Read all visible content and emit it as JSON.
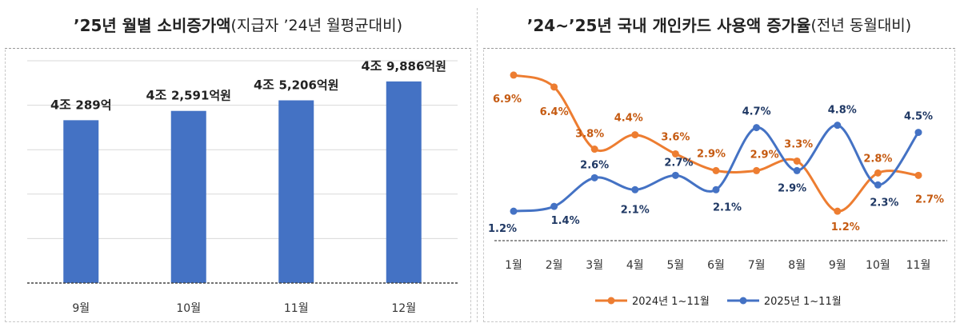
{
  "left_title": {
    "bold": "’25년 월별 소비증가액",
    "normal": "(지급자 ’24년 월평균대비)"
  },
  "right_title": {
    "bold": "’24~’25년 국내 개인카드 사용액 증가율",
    "normal": "(전년 동월대비)"
  },
  "colors": {
    "bar": "#4472c4",
    "orange": "#ed7d31",
    "blue": "#4472c4",
    "label_orange": "#c55a11",
    "label_blue": "#1f3864"
  },
  "chart_data": [
    {
      "type": "bar",
      "title": "’25년 월별 소비증가액(지급자 ’24년 월평균대비)",
      "categories": [
        "9월",
        "10월",
        "11월",
        "12월"
      ],
      "values": [
        40289,
        42591,
        45206,
        49886
      ],
      "value_labels": [
        {
          "big": "4조 ",
          "small": "289억"
        },
        {
          "big": "4조 ",
          "small": "2,591억원"
        },
        {
          "big": "4조 ",
          "small": "5,206억원"
        },
        {
          "big": "4조 ",
          "small": "9,886억원"
        }
      ],
      "unit": "억원",
      "ylim": [
        0,
        55000
      ]
    },
    {
      "type": "line",
      "title": "’24~’25년 국내 개인카드 사용액 증가율(전년 동월대비)",
      "categories": [
        "1월",
        "2월",
        "3월",
        "4월",
        "5월",
        "6월",
        "7월",
        "8월",
        "9월",
        "10월",
        "11월"
      ],
      "series": [
        {
          "name": "2024년 1~11월",
          "values": [
            6.9,
            6.4,
            3.8,
            4.4,
            3.6,
            2.9,
            2.9,
            3.3,
            1.2,
            2.8,
            2.7
          ],
          "labels": [
            "6.9%",
            "6.4%",
            "3.8%",
            "4.4%",
            "3.6%",
            "2.9%",
            "2.9%",
            "3.3%",
            "1.2%",
            "2.8%",
            "2.7%"
          ]
        },
        {
          "name": "2025년 1~11월",
          "values": [
            1.2,
            1.4,
            2.6,
            2.1,
            2.7,
            2.1,
            4.7,
            2.9,
            4.8,
            2.3,
            4.5
          ],
          "labels": [
            "1.2%",
            "1.4%",
            "2.6%",
            "2.1%",
            "2.7%",
            "2.1%",
            "4.7%",
            "2.9%",
            "4.8%",
            "2.3%",
            "4.5%"
          ]
        }
      ],
      "ylim": [
        0,
        7.5
      ],
      "legend": "bottom"
    }
  ]
}
